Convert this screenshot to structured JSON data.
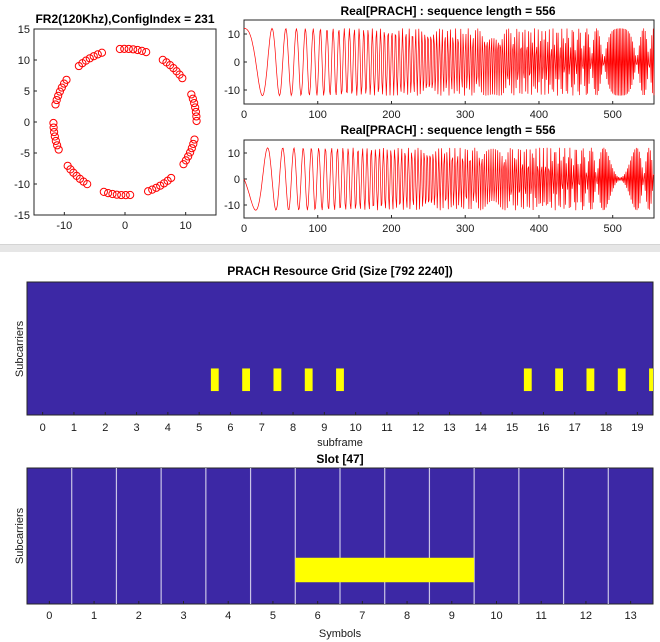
{
  "colors": {
    "signal": "#ff0000",
    "grid_bg": "#3c28a5",
    "grid_on": "#ffff00",
    "slot_line": "#c9c4e6",
    "axis": "#262626"
  },
  "chart_data": [
    {
      "type": "scatter",
      "title": "FR2(120Khz),ConfigIndex = 231",
      "marker": "circle-open",
      "xlim": [
        -15,
        15
      ],
      "ylim": [
        -15,
        15
      ],
      "xticks": [
        "-10",
        "0",
        "10"
      ],
      "xtick_values": [
        -10,
        0,
        10
      ],
      "yticks": [
        "15",
        "10",
        "5",
        "0",
        "-5",
        "-10",
        "-15"
      ],
      "ytick_values": [
        15,
        10,
        5,
        0,
        -5,
        -10,
        -15
      ],
      "radius": 11.8,
      "point_count": 70,
      "points_per_cluster": 7,
      "cluster_count": 10
    },
    {
      "type": "line",
      "title": "Real[PRACH] : sequence length = 556",
      "xlim": [
        0,
        556
      ],
      "ylim": [
        -15,
        15
      ],
      "xticks": [
        "0",
        "100",
        "200",
        "300",
        "400",
        "500"
      ],
      "xtick_values": [
        0,
        100,
        200,
        300,
        400,
        500
      ],
      "yticks": [
        "10",
        "0",
        "-10"
      ],
      "ytick_values": [
        10,
        0,
        -10
      ],
      "amplitude": 12,
      "phase": 0
    },
    {
      "type": "line",
      "title": "Real[PRACH] : sequence length = 556",
      "xlim": [
        0,
        556
      ],
      "ylim": [
        -15,
        15
      ],
      "xticks": [
        "0",
        "100",
        "200",
        "300",
        "400",
        "500"
      ],
      "xtick_values": [
        0,
        100,
        200,
        300,
        400,
        500
      ],
      "yticks": [
        "10",
        "0",
        "-10"
      ],
      "ytick_values": [
        10,
        0,
        -10
      ],
      "amplitude": 12,
      "phase": 1.57
    },
    {
      "type": "heatmap",
      "title": "PRACH Resource Grid (Size [792 2240])",
      "xlabel": "subframe",
      "ylabel": "Subcarriers",
      "xlim": [
        -0.5,
        19.5
      ],
      "xticks": [
        "0",
        "1",
        "2",
        "3",
        "4",
        "5",
        "6",
        "7",
        "8",
        "9",
        "10",
        "11",
        "12",
        "13",
        "14",
        "15",
        "16",
        "17",
        "18",
        "19"
      ],
      "occupied_x": [
        5.5,
        6.5,
        7.5,
        8.5,
        9.5,
        15.5,
        16.5,
        17.5,
        18.5,
        19.5
      ],
      "occupied_width": 0.25,
      "occupied_y_fraction": [
        0.65,
        0.82
      ]
    },
    {
      "type": "heatmap",
      "title": "Slot [47]",
      "xlabel": "Symbols",
      "ylabel": "Subcarriers",
      "xlim": [
        -0.5,
        13.5
      ],
      "xticks": [
        "0",
        "1",
        "2",
        "3",
        "4",
        "5",
        "6",
        "7",
        "8",
        "9",
        "10",
        "11",
        "12",
        "13"
      ],
      "symbol_boundaries": [
        0.5,
        1.5,
        2.5,
        3.5,
        4.5,
        5.5,
        6.5,
        7.5,
        8.5,
        9.5,
        10.5,
        11.5,
        12.5
      ],
      "occupied_x_range": [
        5.5,
        9.5
      ],
      "occupied_y_fraction": [
        0.66,
        0.84
      ]
    }
  ]
}
